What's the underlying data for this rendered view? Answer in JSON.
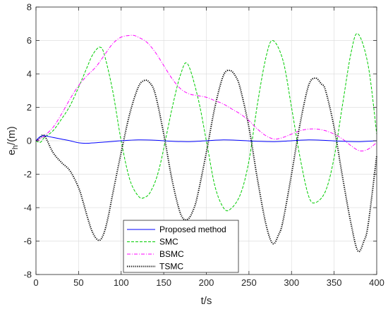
{
  "chart_data": {
    "type": "line",
    "xlabel": "t/s",
    "ylabel_main": "e",
    "ylabel_sub": "h",
    "ylabel_unit": "/(m)",
    "xlim": [
      0,
      400
    ],
    "ylim": [
      -8,
      8
    ],
    "xticks": [
      0,
      50,
      100,
      150,
      200,
      250,
      300,
      350,
      400
    ],
    "yticks": [
      -8,
      -6,
      -4,
      -2,
      0,
      2,
      4,
      6,
      8
    ],
    "grid": true,
    "legend_position": "bottom-center",
    "series": [
      {
        "name": "Proposed method",
        "color": "#0000ff",
        "dash": "solid",
        "x": [
          0,
          5,
          10,
          20,
          30,
          40,
          50,
          60,
          80,
          100,
          120,
          140,
          160,
          180,
          200,
          220,
          240,
          260,
          280,
          300,
          320,
          340,
          360,
          380,
          400
        ],
        "y": [
          0,
          0.25,
          0.3,
          0.2,
          0.1,
          0.0,
          -0.12,
          -0.15,
          -0.08,
          0.0,
          0.05,
          0.03,
          -0.03,
          -0.05,
          0.0,
          0.05,
          0.02,
          -0.03,
          -0.05,
          0.0,
          0.05,
          0.02,
          -0.03,
          -0.05,
          0.0
        ]
      },
      {
        "name": "SMC",
        "color": "#00cc00",
        "dash": "dashed",
        "x": [
          0,
          5,
          10,
          20,
          30,
          40,
          50,
          60,
          65,
          70,
          75,
          80,
          90,
          100,
          110,
          120,
          127,
          135,
          145,
          160,
          170,
          178,
          190,
          200,
          210,
          220,
          228,
          240,
          250,
          260,
          270,
          278,
          290,
          300,
          310,
          320,
          328,
          340,
          350,
          360,
          370,
          378,
          390,
          400
        ],
        "y": [
          0,
          -0.1,
          0.2,
          0.6,
          1.3,
          2.1,
          3.2,
          4.4,
          5.0,
          5.4,
          5.6,
          5.2,
          3.0,
          0.0,
          -2.3,
          -3.3,
          -3.4,
          -3.0,
          -1.6,
          2.0,
          4.0,
          4.6,
          2.6,
          0.0,
          -2.7,
          -4.0,
          -4.1,
          -3.2,
          -1.2,
          2.2,
          5.0,
          6.0,
          4.8,
          2.0,
          -1.0,
          -3.3,
          -3.7,
          -3.0,
          -1.0,
          2.2,
          5.3,
          6.4,
          4.5,
          0.4
        ]
      },
      {
        "name": "BSMC",
        "color": "#ff00ff",
        "dash": "dashdot",
        "x": [
          0,
          5,
          10,
          20,
          30,
          40,
          50,
          60,
          70,
          80,
          90,
          100,
          110,
          115,
          120,
          130,
          140,
          150,
          160,
          170,
          180,
          190,
          200,
          210,
          220,
          230,
          240,
          250,
          260,
          270,
          280,
          290,
          300,
          310,
          320,
          330,
          340,
          350,
          360,
          370,
          380,
          390,
          400
        ],
        "y": [
          0,
          0.1,
          0.3,
          0.8,
          1.6,
          2.5,
          3.3,
          3.9,
          4.4,
          5.1,
          5.8,
          6.2,
          6.3,
          6.3,
          6.2,
          5.9,
          5.3,
          4.5,
          3.7,
          3.1,
          2.8,
          2.7,
          2.6,
          2.4,
          2.2,
          1.9,
          1.6,
          1.2,
          0.7,
          0.3,
          0.1,
          0.2,
          0.4,
          0.6,
          0.7,
          0.7,
          0.6,
          0.4,
          0.1,
          -0.3,
          -0.6,
          -0.5,
          -0.1
        ]
      },
      {
        "name": "TSMC",
        "color": "#000000",
        "dash": "dotted",
        "x": [
          0,
          5,
          10,
          20,
          30,
          40,
          50,
          55,
          60,
          65,
          70,
          75,
          80,
          85,
          90,
          100,
          110,
          120,
          127,
          133,
          140,
          150,
          160,
          170,
          178,
          185,
          190,
          200,
          210,
          220,
          228,
          235,
          240,
          250,
          260,
          270,
          278,
          285,
          290,
          300,
          310,
          320,
          328,
          335,
          340,
          350,
          360,
          370,
          378,
          385,
          390,
          400
        ],
        "y": [
          0,
          0.2,
          0.3,
          -0.7,
          -1.3,
          -1.8,
          -2.8,
          -3.6,
          -4.5,
          -5.3,
          -5.8,
          -5.95,
          -5.5,
          -4.5,
          -3.2,
          -0.7,
          1.6,
          3.2,
          3.6,
          3.5,
          2.8,
          0.4,
          -2.4,
          -4.4,
          -4.7,
          -4.1,
          -3.2,
          -0.7,
          2.0,
          3.9,
          4.2,
          3.8,
          3.1,
          0.8,
          -2.3,
          -5.0,
          -6.15,
          -5.6,
          -4.8,
          -2.0,
          1.0,
          3.3,
          3.75,
          3.4,
          3.0,
          0.8,
          -2.2,
          -5.0,
          -6.6,
          -6.0,
          -5.0,
          -0.9
        ]
      }
    ]
  }
}
